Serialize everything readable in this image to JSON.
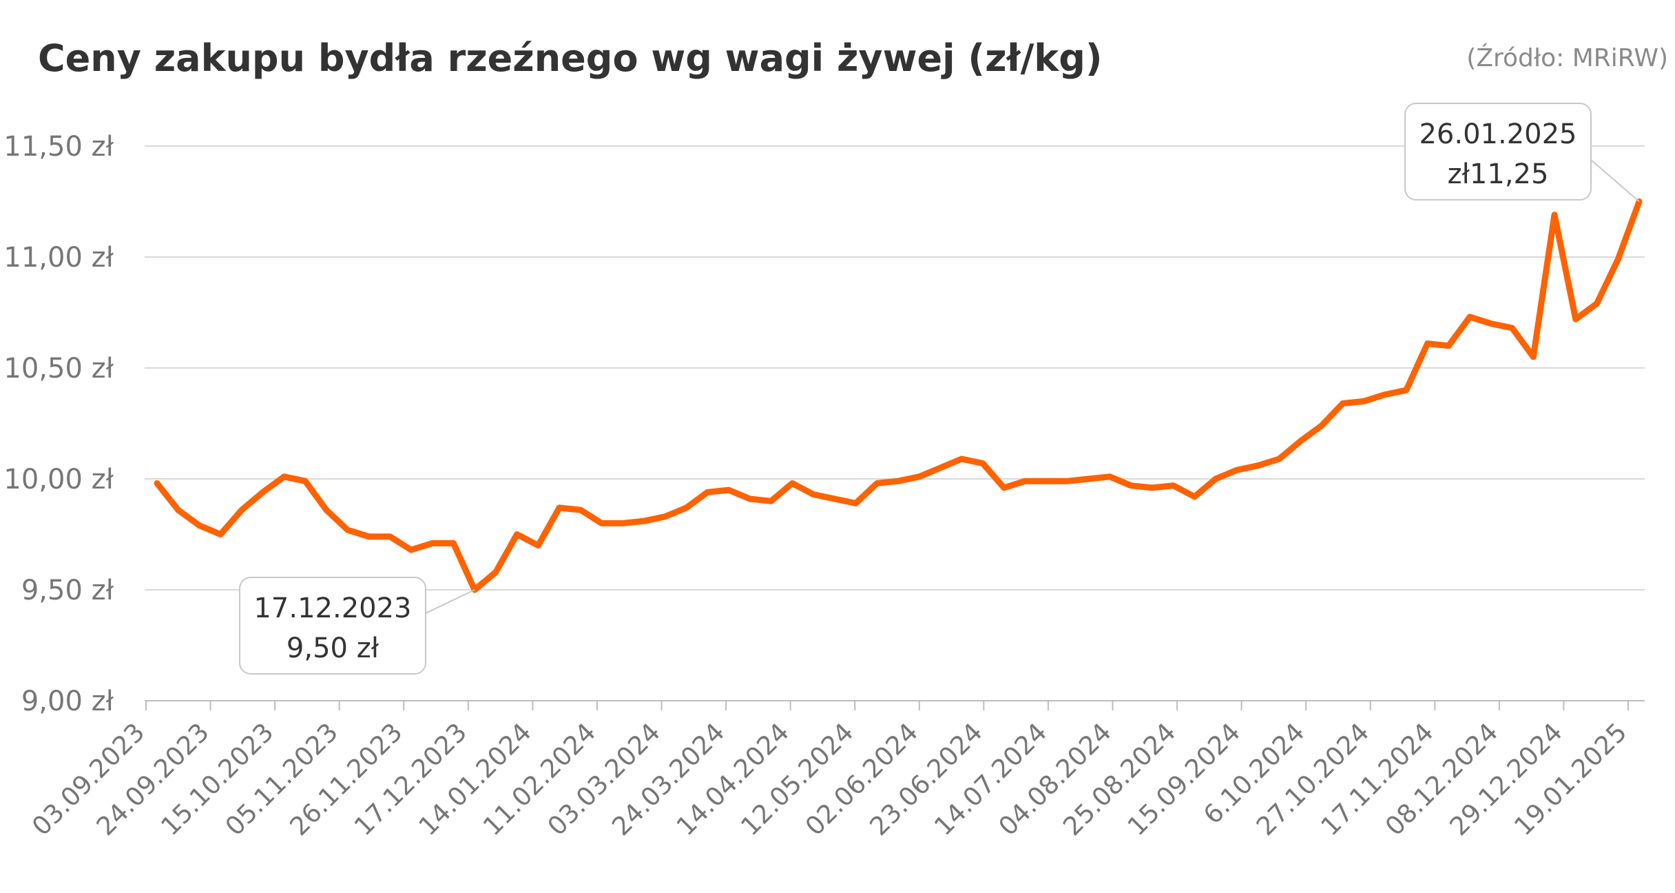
{
  "colors": {
    "line": "#ff6200",
    "grid": "#d9d9d9",
    "axis": "#bdbdbd",
    "text": "#333333",
    "muted": "#767676"
  },
  "chart_data": {
    "type": "line",
    "title": "Ceny zakupu bydła rzeźnego wg wagi żywej (zł/kg)",
    "source": "(Źródło: MRiRW)",
    "ylim": [
      9.0,
      11.5
    ],
    "y_ticks": [
      {
        "value": 11.5,
        "label": "11,50 zł"
      },
      {
        "value": 11.0,
        "label": "11,00 zł"
      },
      {
        "value": 10.5,
        "label": "10,50 zł"
      },
      {
        "value": 10.0,
        "label": "10,00 zł"
      },
      {
        "value": 9.5,
        "label": "9,50 zł"
      },
      {
        "value": 9.0,
        "label": "9,00 zł"
      }
    ],
    "x_tick_labels": [
      "03.09.2023",
      "24.09.2023",
      "15.10.2023",
      "05.11.2023",
      "26.11.2023",
      "17.12.2023",
      "14.01.2024",
      "11.02.2024",
      "03.03.2024",
      "24.03.2024",
      "14.04.2024",
      "12.05.2024",
      "02.06.2024",
      "23.06.2024",
      "14.07.2024",
      "04.08.2024",
      "25.08.2024",
      "15.09.2024",
      "6.10.2024",
      "27.10.2024",
      "17.11.2024",
      "08.12.2024",
      "29.12.2024",
      "19.01.2025"
    ],
    "grid": true,
    "legend": "none",
    "series": [
      {
        "values": [
          9.98,
          9.86,
          9.79,
          9.75,
          9.86,
          9.94,
          10.01,
          9.99,
          9.86,
          9.77,
          9.74,
          9.74,
          9.68,
          9.71,
          9.71,
          9.5,
          9.58,
          9.75,
          9.7,
          9.87,
          9.86,
          9.8,
          9.8,
          9.81,
          9.83,
          9.87,
          9.94,
          9.95,
          9.91,
          9.9,
          9.98,
          9.93,
          9.91,
          9.89,
          9.98,
          9.99,
          10.01,
          10.05,
          10.09,
          10.07,
          9.96,
          9.99,
          9.99,
          9.99,
          10.0,
          10.01,
          9.97,
          9.96,
          9.97,
          9.92,
          10.0,
          10.04,
          10.06,
          10.09,
          10.17,
          10.24,
          10.34,
          10.35,
          10.38,
          10.4,
          10.61,
          10.6,
          10.73,
          10.7,
          10.68,
          10.55,
          11.19,
          10.72,
          10.79,
          10.99,
          11.25
        ]
      }
    ],
    "annotations": [
      {
        "index": 15,
        "date": "17.12.2023",
        "value_label": "9,50 zł"
      },
      {
        "index": 70,
        "date": "26.01.2025",
        "value_label": "zł11,25"
      }
    ]
  }
}
